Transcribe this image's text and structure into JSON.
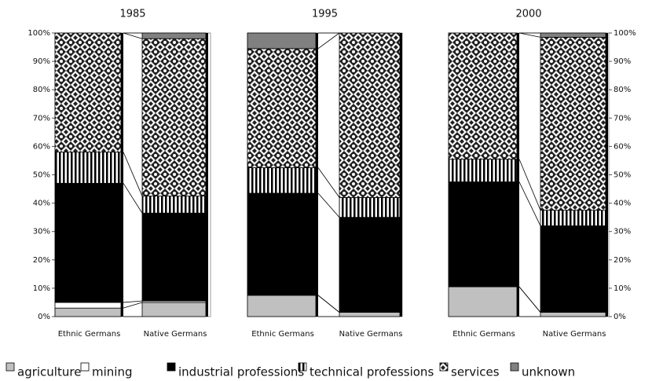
{
  "chart_data": [
    {
      "type": "bar",
      "stacked": true,
      "title": "1985",
      "categories": [
        "Ethnic Germans",
        "Native Germans"
      ],
      "ylim": [
        0,
        100
      ],
      "yticks": [
        {
          "value": 0,
          "label": "0%"
        },
        {
          "value": 10,
          "label": "10%"
        },
        {
          "value": 20,
          "label": "20%"
        },
        {
          "value": 30,
          "label": "30%"
        },
        {
          "value": 40,
          "label": "40%"
        },
        {
          "value": 50,
          "label": "50%"
        },
        {
          "value": 60,
          "label": "60%"
        },
        {
          "value": 70,
          "label": "70%"
        },
        {
          "value": 80,
          "label": "80%"
        },
        {
          "value": 90,
          "label": "90%"
        },
        {
          "value": 100,
          "label": "100%"
        }
      ],
      "axis_side": "left",
      "series": [
        {
          "name": "agriculture",
          "color": "#c0c0c0",
          "values": [
            3,
            5
          ]
        },
        {
          "name": "mining",
          "color": "#ffffff",
          "values": [
            2,
            0.5
          ]
        },
        {
          "name": "industrial professions",
          "color": "#000000",
          "values": [
            42,
            31
          ]
        },
        {
          "name": "technical professions",
          "color": "#000000",
          "pattern": "vertical-stripes",
          "values": [
            11,
            6
          ]
        },
        {
          "name": "services",
          "color": "#000000",
          "pattern": "diamonds",
          "values": [
            42,
            55.5
          ]
        },
        {
          "name": "unknown",
          "color": "#808080",
          "values": [
            0,
            2
          ]
        }
      ]
    },
    {
      "type": "bar",
      "stacked": true,
      "title": "1995",
      "categories": [
        "Ethnic Germans",
        "Native Germans"
      ],
      "ylim": [
        0,
        100
      ],
      "series": [
        {
          "name": "agriculture",
          "color": "#c0c0c0",
          "values": [
            7.5,
            1.5
          ]
        },
        {
          "name": "mining",
          "color": "#ffffff",
          "values": [
            0,
            0
          ]
        },
        {
          "name": "industrial professions",
          "color": "#000000",
          "values": [
            36,
            33.5
          ]
        },
        {
          "name": "technical professions",
          "color": "#000000",
          "pattern": "vertical-stripes",
          "values": [
            9,
            7
          ]
        },
        {
          "name": "services",
          "color": "#000000",
          "pattern": "diamonds",
          "values": [
            42,
            58
          ]
        },
        {
          "name": "unknown",
          "color": "#808080",
          "values": [
            5.5,
            0
          ]
        }
      ]
    },
    {
      "type": "bar",
      "stacked": true,
      "title": "2000",
      "categories": [
        "Ethnic Germans",
        "Native Germans"
      ],
      "ylim": [
        0,
        100
      ],
      "yticks": [
        {
          "value": 0,
          "label": "0%"
        },
        {
          "value": 10,
          "label": "10%"
        },
        {
          "value": 20,
          "label": "20%"
        },
        {
          "value": 30,
          "label": "30%"
        },
        {
          "value": 40,
          "label": "40%"
        },
        {
          "value": 50,
          "label": "50%"
        },
        {
          "value": 60,
          "label": "60%"
        },
        {
          "value": 70,
          "label": "70%"
        },
        {
          "value": 80,
          "label": "80%"
        },
        {
          "value": 90,
          "label": "90%"
        },
        {
          "value": 100,
          "label": "100%"
        }
      ],
      "axis_side": "right",
      "series": [
        {
          "name": "agriculture",
          "color": "#c0c0c0",
          "values": [
            10.5,
            1.5
          ]
        },
        {
          "name": "mining",
          "color": "#ffffff",
          "values": [
            0,
            0
          ]
        },
        {
          "name": "industrial professions",
          "color": "#000000",
          "values": [
            37,
            30.5
          ]
        },
        {
          "name": "technical professions",
          "color": "#000000",
          "pattern": "vertical-stripes",
          "values": [
            8,
            5.5
          ]
        },
        {
          "name": "services",
          "color": "#000000",
          "pattern": "diamonds",
          "values": [
            44.5,
            61
          ]
        },
        {
          "name": "unknown",
          "color": "#808080",
          "values": [
            0,
            1.5
          ]
        }
      ]
    }
  ]
}
